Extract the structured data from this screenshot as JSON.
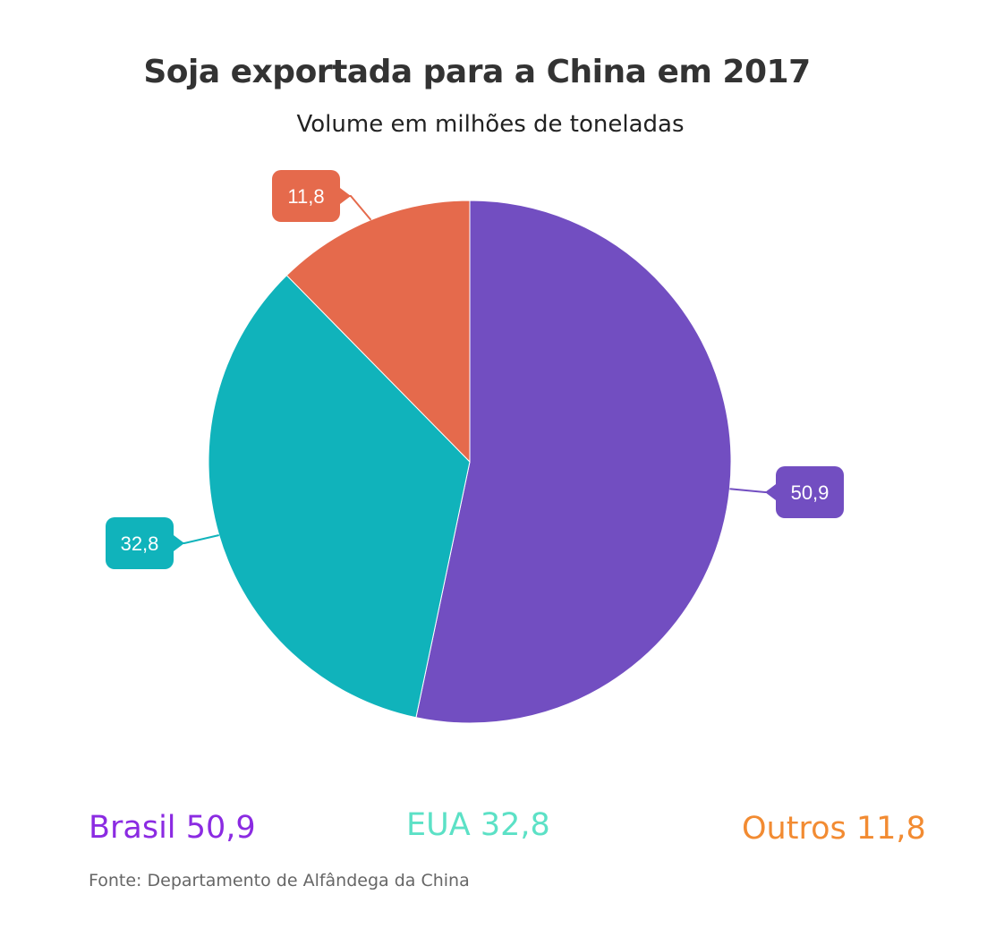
{
  "header": {
    "title": "Soja exportada para a China em 2017",
    "subtitle": "Volume em milhões de toneladas"
  },
  "chart_data": {
    "type": "pie",
    "title": "Soja exportada para a China em 2017",
    "subtitle": "Volume em milhões de toneladas",
    "categories": [
      "Brasil",
      "EUA",
      "Outros"
    ],
    "values": [
      50.9,
      32.8,
      11.8
    ],
    "data_labels": [
      "50,9",
      "32,8",
      "11,8"
    ],
    "colors": [
      "#724EC1",
      "#10B3BB",
      "#E56A4C"
    ],
    "start_angle": "12 o'clock",
    "direction": "clockwise",
    "legend_position": "bottom"
  },
  "legend": [
    {
      "name": "Brasil",
      "value": "50,9",
      "color": "#8B2BE2"
    },
    {
      "name": "EUA",
      "value": "32,8",
      "color": "#5CE1C6"
    },
    {
      "name": "Outros",
      "value": "11,8",
      "color": "#F28B32"
    }
  ],
  "footer": {
    "source": "Fonte: Departamento de Alfândega da China"
  }
}
